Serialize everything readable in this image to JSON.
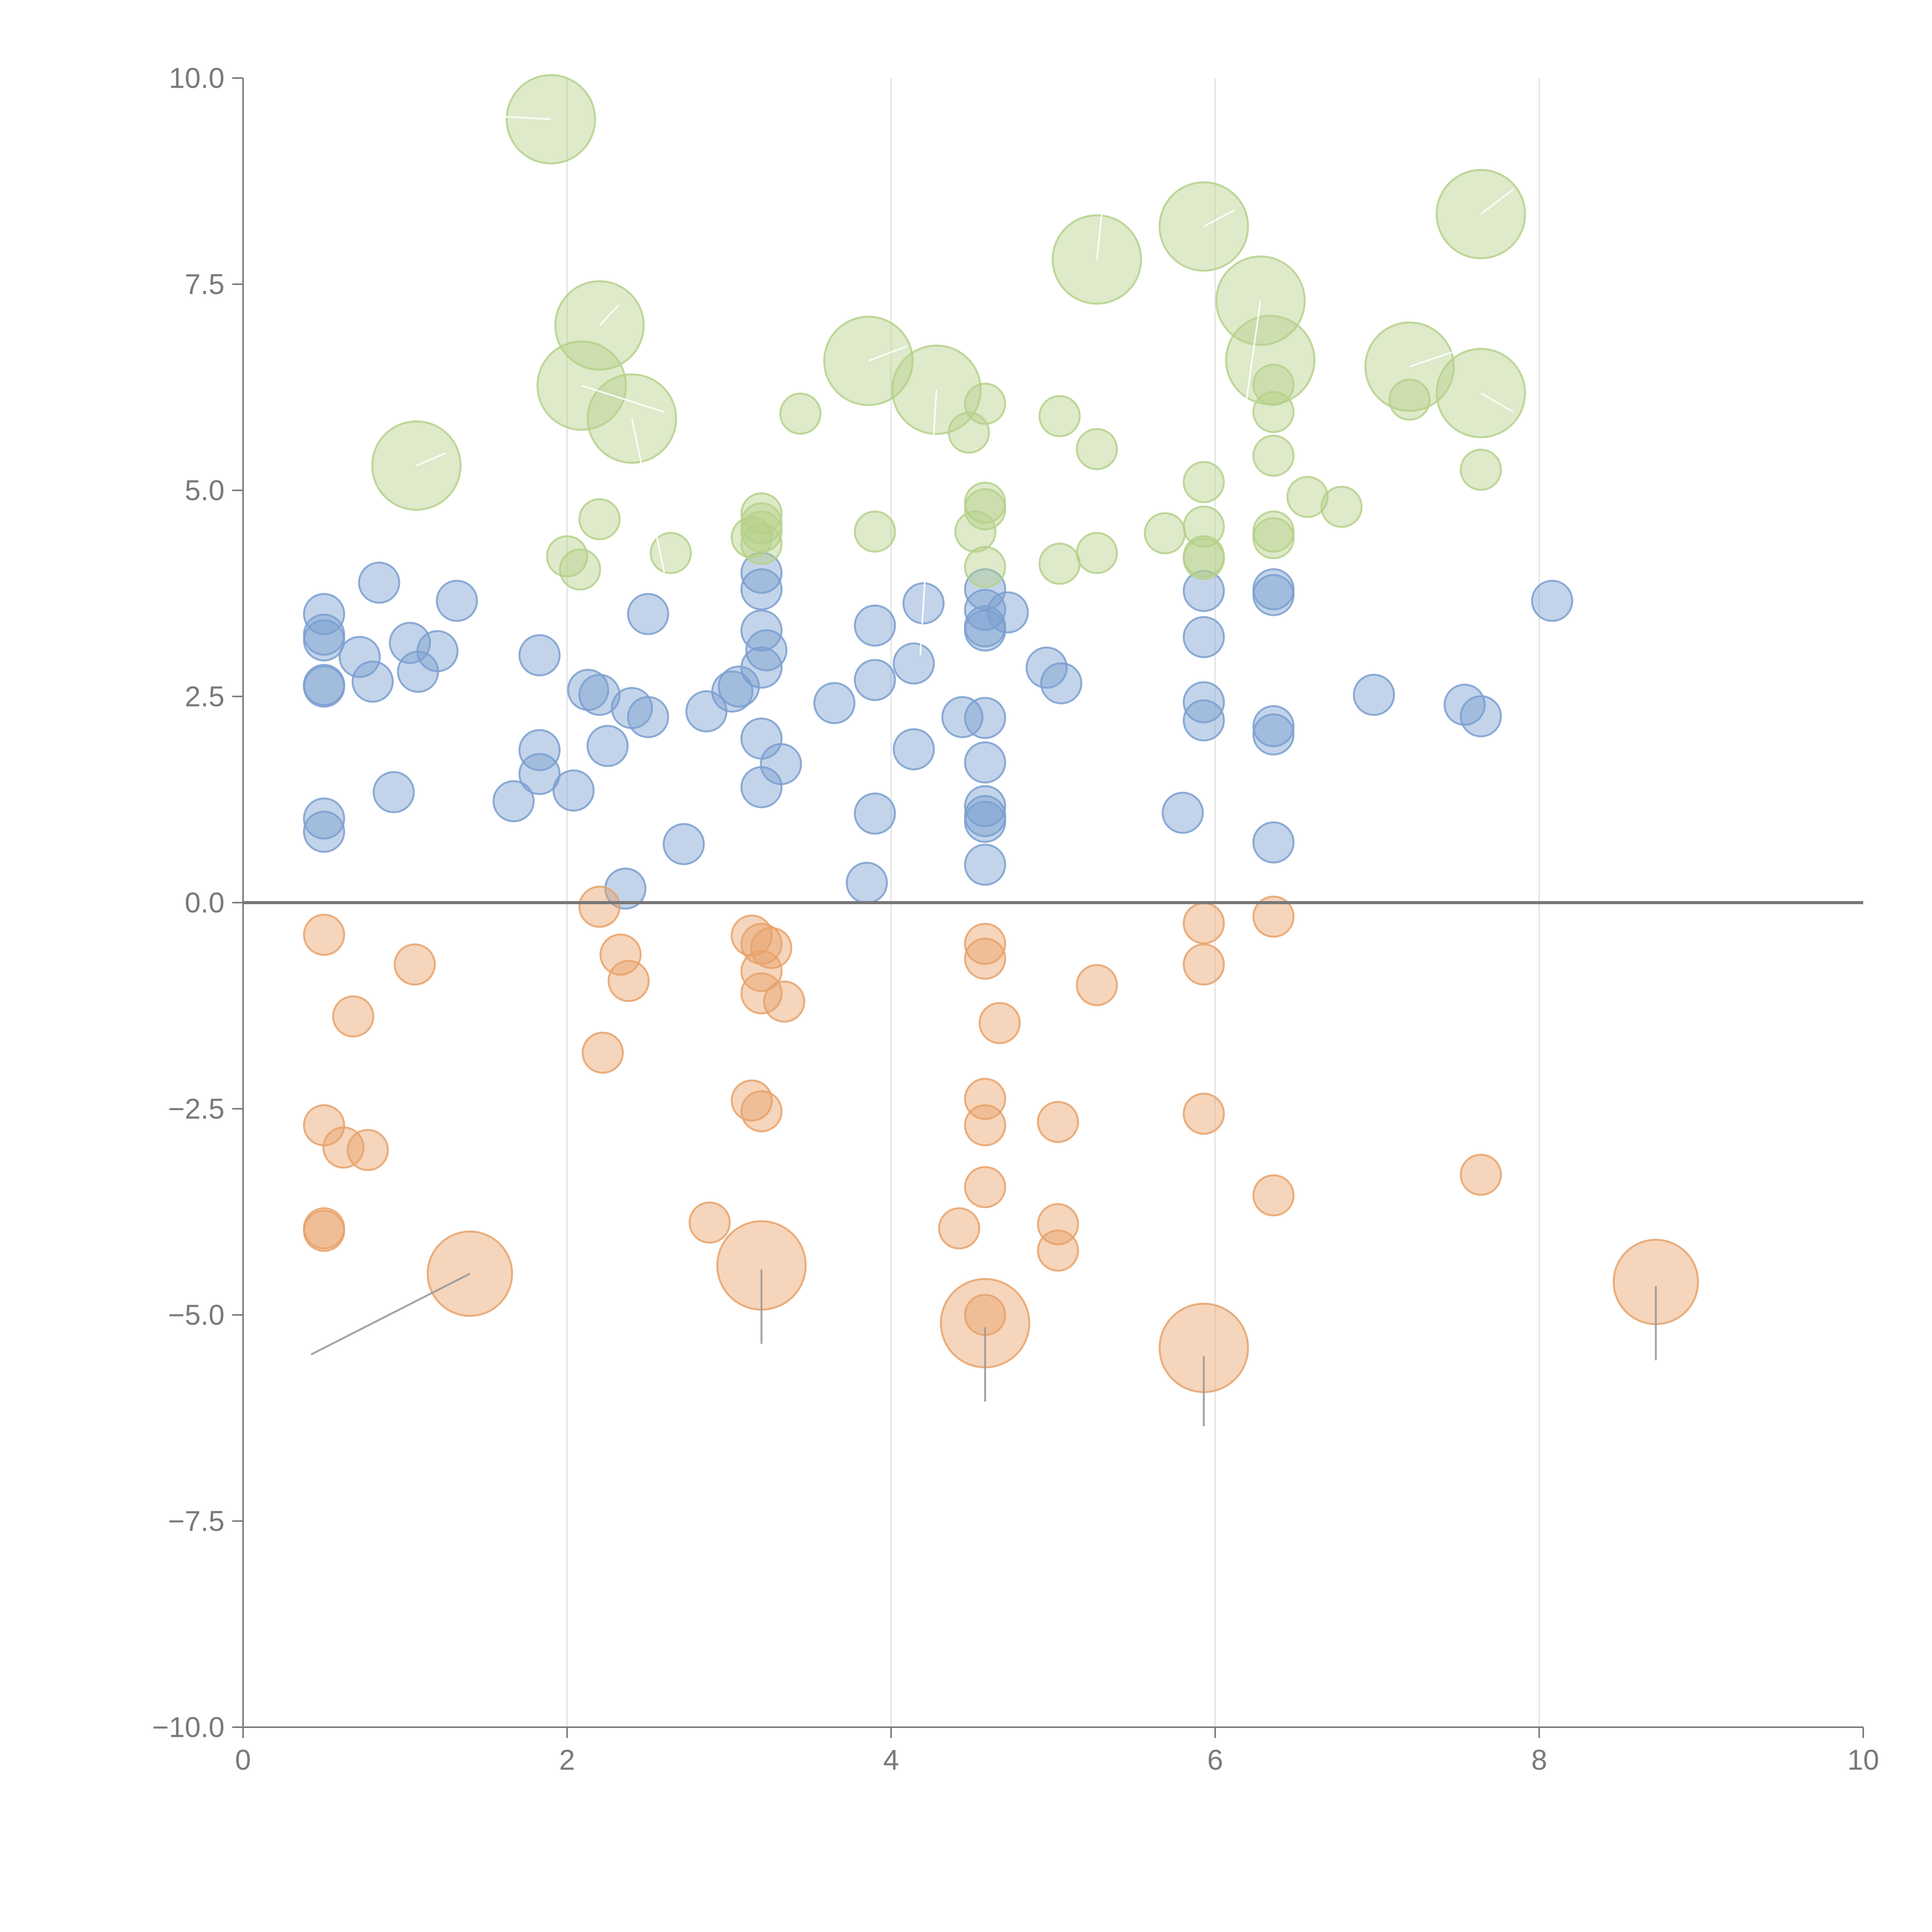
{
  "chart_data": {
    "type": "scatter",
    "title": "",
    "xlabel": "",
    "ylabel": "",
    "xlim": [
      0,
      10
    ],
    "ylim": [
      -10,
      10
    ],
    "x_ticks": [
      0,
      2,
      4,
      6,
      8,
      10
    ],
    "x_tick_labels": [
      "0",
      "2",
      "4",
      "6",
      "8",
      "10"
    ],
    "y_ticks": [
      -10,
      -7.5,
      -5,
      -2.5,
      0,
      2.5,
      5,
      7.5,
      10
    ],
    "y_tick_labels": [
      "−10.0",
      "−7.5",
      "−5.0",
      "−2.5",
      "0.0",
      "2.5",
      "5.0",
      "7.5",
      "10.0"
    ],
    "vertical_gridlines_at": [
      2,
      4,
      6,
      8
    ],
    "zero_line": 0,
    "marker_opacity": 0.45,
    "colors": {
      "blue": "#7b9fd0",
      "orange": "#e8a26a",
      "green": "#b5d18a",
      "axis": "#7a7a7a",
      "grid": "#e0e0e0",
      "zero_line": "#777777",
      "leader": "#9a9a9a"
    },
    "series": [
      {
        "name": "blue",
        "color": "#7b9fd0",
        "points": [
          [
            0.5,
            3.5,
            1
          ],
          [
            0.5,
            3.25,
            1
          ],
          [
            0.5,
            3.18,
            1
          ],
          [
            0.5,
            2.64,
            1
          ],
          [
            0.5,
            2.62,
            1
          ],
          [
            0.5,
            1.02,
            1
          ],
          [
            0.5,
            0.86,
            1
          ],
          [
            0.72,
            2.98,
            1
          ],
          [
            0.8,
            2.68,
            1
          ],
          [
            0.84,
            3.88,
            1
          ],
          [
            0.93,
            1.34,
            1
          ],
          [
            1.03,
            3.15,
            1
          ],
          [
            1.08,
            2.8,
            1
          ],
          [
            1.2,
            3.05,
            1
          ],
          [
            1.32,
            3.66,
            1
          ],
          [
            1.67,
            1.23,
            1
          ],
          [
            1.83,
            3.0,
            1
          ],
          [
            1.83,
            1.85,
            1
          ],
          [
            1.83,
            1.56,
            1
          ],
          [
            2.04,
            1.36,
            1
          ],
          [
            2.13,
            2.58,
            1
          ],
          [
            2.2,
            2.52,
            1
          ],
          [
            2.25,
            1.9,
            1
          ],
          [
            2.36,
            0.17,
            1
          ],
          [
            2.4,
            2.36,
            1
          ],
          [
            2.5,
            3.5,
            1
          ],
          [
            2.5,
            2.25,
            1
          ],
          [
            2.72,
            0.71,
            1
          ],
          [
            2.86,
            2.32,
            1
          ],
          [
            3.02,
            2.56,
            1
          ],
          [
            3.06,
            2.62,
            1
          ],
          [
            3.2,
            4.0,
            1
          ],
          [
            3.2,
            3.8,
            1
          ],
          [
            3.2,
            3.3,
            1
          ],
          [
            3.2,
            2.85,
            1
          ],
          [
            3.2,
            1.99,
            1
          ],
          [
            3.2,
            1.4,
            1
          ],
          [
            3.23,
            3.06,
            1
          ],
          [
            3.32,
            1.68,
            1
          ],
          [
            3.65,
            2.42,
            1
          ],
          [
            3.85,
            0.24,
            1
          ],
          [
            3.9,
            3.36,
            1
          ],
          [
            3.9,
            2.7,
            1
          ],
          [
            3.9,
            1.08,
            1
          ],
          [
            4.14,
            2.9,
            1
          ],
          [
            4.14,
            1.86,
            1
          ],
          [
            4.2,
            3.63,
            1
          ],
          [
            4.44,
            2.25,
            1
          ],
          [
            4.58,
            3.8,
            1
          ],
          [
            4.58,
            3.55,
            1
          ],
          [
            4.58,
            3.35,
            1
          ],
          [
            4.58,
            3.3,
            1
          ],
          [
            4.58,
            2.24,
            1
          ],
          [
            4.58,
            1.7,
            1
          ],
          [
            4.58,
            1.17,
            1
          ],
          [
            4.58,
            1.05,
            1
          ],
          [
            4.58,
            0.98,
            1
          ],
          [
            4.58,
            0.46,
            1
          ],
          [
            4.72,
            3.52,
            1
          ],
          [
            4.96,
            2.85,
            1
          ],
          [
            5.05,
            2.66,
            1
          ],
          [
            5.8,
            1.09,
            1
          ],
          [
            5.93,
            3.78,
            1
          ],
          [
            5.93,
            3.22,
            1
          ],
          [
            5.93,
            2.43,
            1
          ],
          [
            5.93,
            2.21,
            1
          ],
          [
            6.36,
            3.8,
            1
          ],
          [
            6.36,
            3.73,
            1
          ],
          [
            6.36,
            2.14,
            1
          ],
          [
            6.36,
            2.04,
            1
          ],
          [
            6.36,
            0.73,
            1
          ],
          [
            6.98,
            2.52,
            1
          ],
          [
            7.54,
            2.4,
            1
          ],
          [
            7.64,
            2.26,
            1
          ],
          [
            8.08,
            3.66,
            1
          ]
        ]
      },
      {
        "name": "orange",
        "color": "#e8a26a",
        "points": [
          [
            0.5,
            -0.39,
            1
          ],
          [
            0.5,
            -2.7,
            1
          ],
          [
            0.5,
            -3.95,
            1
          ],
          [
            0.5,
            -3.98,
            1
          ],
          [
            0.62,
            -2.97,
            1
          ],
          [
            0.68,
            -1.38,
            1
          ],
          [
            0.77,
            -3.0,
            1
          ],
          [
            1.06,
            -0.75,
            1
          ],
          [
            2.2,
            -0.05,
            1
          ],
          [
            2.22,
            -1.82,
            1
          ],
          [
            2.33,
            -0.63,
            1
          ],
          [
            2.38,
            -0.95,
            1
          ],
          [
            2.88,
            -3.88,
            1
          ],
          [
            3.14,
            -0.4,
            1
          ],
          [
            3.14,
            -2.4,
            1
          ],
          [
            3.2,
            -0.5,
            1
          ],
          [
            3.2,
            -0.83,
            1
          ],
          [
            3.2,
            -1.1,
            1
          ],
          [
            3.2,
            -2.53,
            1
          ],
          [
            3.26,
            -0.55,
            1
          ],
          [
            3.34,
            -1.2,
            1
          ],
          [
            4.42,
            -3.95,
            1
          ],
          [
            4.58,
            -0.5,
            1
          ],
          [
            4.58,
            -0.68,
            1
          ],
          [
            4.58,
            -2.38,
            1
          ],
          [
            4.58,
            -2.7,
            1
          ],
          [
            4.58,
            -3.45,
            1
          ],
          [
            4.58,
            -5.0,
            1
          ],
          [
            4.67,
            -1.46,
            1
          ],
          [
            5.03,
            -2.66,
            1
          ],
          [
            5.03,
            -3.9,
            1
          ],
          [
            5.03,
            -4.22,
            1
          ],
          [
            5.27,
            -1.0,
            1
          ],
          [
            5.93,
            -0.25,
            1
          ],
          [
            5.93,
            -0.75,
            1
          ],
          [
            5.93,
            -2.56,
            1
          ],
          [
            6.36,
            -0.17,
            1
          ],
          [
            6.36,
            -3.55,
            1
          ],
          [
            7.64,
            -3.3,
            1
          ],
          [
            1.4,
            -4.5,
            2.1
          ],
          [
            3.2,
            -4.4,
            2.2
          ],
          [
            4.58,
            -5.1,
            2.2
          ],
          [
            5.93,
            -5.4,
            2.2
          ],
          [
            8.72,
            -4.6,
            2.1
          ]
        ]
      },
      {
        "name": "green",
        "color": "#b5d18a",
        "points": [
          [
            1.9,
            9.5,
            2.2
          ],
          [
            1.07,
            5.3,
            2.2
          ],
          [
            2.2,
            7.0,
            2.2
          ],
          [
            2.09,
            6.27,
            2.2
          ],
          [
            2.4,
            5.87,
            2.2
          ],
          [
            3.86,
            6.57,
            2.2
          ],
          [
            4.28,
            6.22,
            2.2
          ],
          [
            5.27,
            7.8,
            2.2
          ],
          [
            5.93,
            8.2,
            2.2
          ],
          [
            6.28,
            7.3,
            2.2
          ],
          [
            6.34,
            6.58,
            2.2
          ],
          [
            7.2,
            6.5,
            2.2
          ],
          [
            7.64,
            8.35,
            2.2
          ],
          [
            7.64,
            6.18,
            2.2
          ],
          [
            2.0,
            4.2,
            1
          ],
          [
            2.08,
            4.04,
            1
          ],
          [
            2.2,
            4.65,
            1
          ],
          [
            2.64,
            4.24,
            1
          ],
          [
            3.14,
            4.43,
            1
          ],
          [
            3.2,
            4.72,
            1
          ],
          [
            3.2,
            4.6,
            1
          ],
          [
            3.2,
            4.5,
            1
          ],
          [
            3.2,
            4.35,
            1
          ],
          [
            3.44,
            5.93,
            1
          ],
          [
            3.9,
            4.5,
            1
          ],
          [
            4.48,
            5.7,
            1
          ],
          [
            4.52,
            4.5,
            1
          ],
          [
            4.58,
            6.05,
            1
          ],
          [
            4.58,
            4.85,
            1
          ],
          [
            4.58,
            4.77,
            1
          ],
          [
            4.58,
            4.07,
            1
          ],
          [
            5.04,
            5.9,
            1
          ],
          [
            5.04,
            4.11,
            1
          ],
          [
            5.27,
            5.5,
            1
          ],
          [
            5.27,
            4.24,
            1
          ],
          [
            5.69,
            4.48,
            1
          ],
          [
            5.93,
            5.1,
            1
          ],
          [
            5.93,
            4.56,
            1
          ],
          [
            5.93,
            4.2,
            1
          ],
          [
            5.93,
            4.17,
            1
          ],
          [
            6.36,
            6.28,
            1
          ],
          [
            6.36,
            5.95,
            1
          ],
          [
            6.36,
            5.42,
            1
          ],
          [
            6.36,
            4.5,
            1
          ],
          [
            6.36,
            4.42,
            1
          ],
          [
            6.57,
            4.92,
            1
          ],
          [
            6.78,
            4.8,
            1
          ],
          [
            7.2,
            6.1,
            1
          ],
          [
            7.64,
            5.25,
            1
          ]
        ]
      }
    ],
    "leader_lines": [
      {
        "color": "grey",
        "from": [
          1.4,
          -4.5
        ],
        "to": [
          0.42,
          -5.48
        ]
      },
      {
        "color": "grey",
        "from": [
          3.2,
          -4.45
        ],
        "to": [
          3.2,
          -5.35
        ]
      },
      {
        "color": "grey",
        "from": [
          4.58,
          -5.15
        ],
        "to": [
          4.58,
          -6.05
        ]
      },
      {
        "color": "grey",
        "from": [
          5.93,
          -5.5
        ],
        "to": [
          5.93,
          -6.35
        ]
      },
      {
        "color": "grey",
        "from": [
          8.72,
          -4.65
        ],
        "to": [
          8.72,
          -5.55
        ]
      },
      {
        "color": "white",
        "from": [
          1.9,
          9.5
        ],
        "to": [
          1.45,
          9.55
        ]
      },
      {
        "color": "white",
        "from": [
          1.07,
          5.3
        ],
        "to": [
          1.25,
          5.45
        ]
      },
      {
        "color": "white",
        "from": [
          2.2,
          7.0
        ],
        "to": [
          2.32,
          7.25
        ]
      },
      {
        "color": "white",
        "from": [
          2.09,
          6.27
        ],
        "to": [
          2.6,
          5.95
        ]
      },
      {
        "color": "white",
        "from": [
          2.4,
          5.87
        ],
        "to": [
          2.6,
          4.0
        ]
      },
      {
        "color": "white",
        "from": [
          3.86,
          6.57
        ],
        "to": [
          4.1,
          6.75
        ]
      },
      {
        "color": "white",
        "from": [
          4.28,
          6.22
        ],
        "to": [
          4.18,
          3.0
        ]
      },
      {
        "color": "white",
        "from": [
          5.27,
          7.8
        ],
        "to": [
          5.3,
          8.35
        ]
      },
      {
        "color": "white",
        "from": [
          5.93,
          8.2
        ],
        "to": [
          6.12,
          8.4
        ]
      },
      {
        "color": "white",
        "from": [
          6.28,
          7.3
        ],
        "to": [
          6.15,
          5.5
        ]
      },
      {
        "color": "white",
        "from": [
          7.2,
          6.5
        ],
        "to": [
          7.5,
          6.7
        ]
      },
      {
        "color": "white",
        "from": [
          7.64,
          8.35
        ],
        "to": [
          7.84,
          8.65
        ]
      },
      {
        "color": "white",
        "from": [
          7.64,
          6.18
        ],
        "to": [
          7.84,
          5.95
        ]
      }
    ]
  }
}
